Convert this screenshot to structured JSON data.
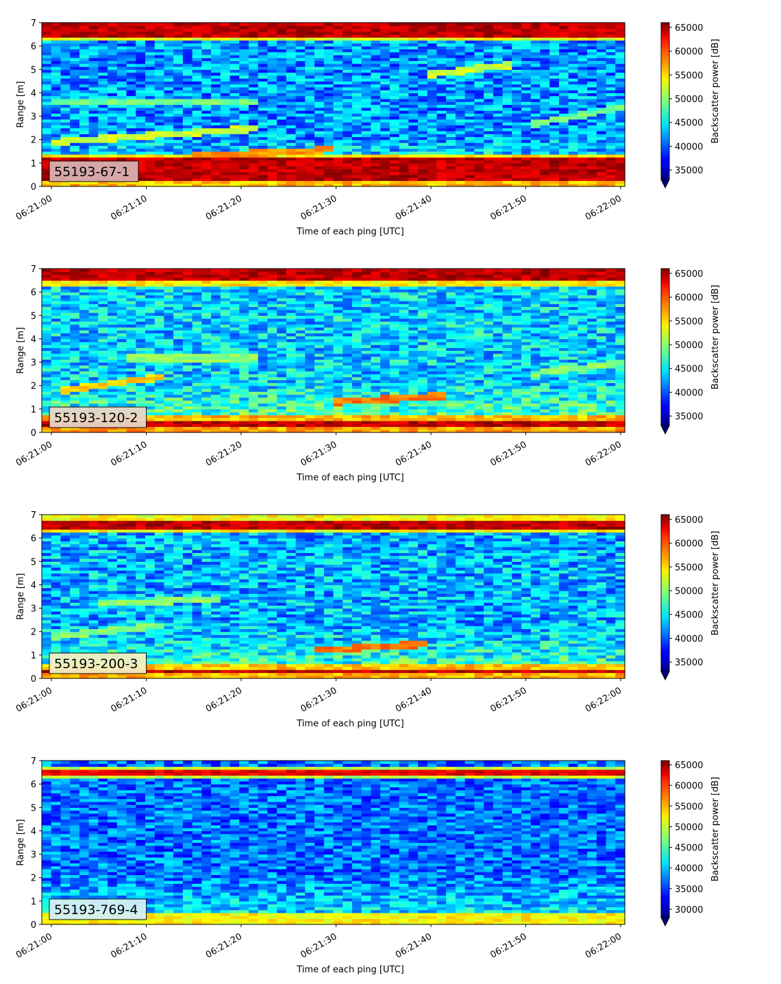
{
  "figure": {
    "panels": [
      {
        "label": "55193-67-1",
        "label_bg": "#d9b0b0",
        "cbar_ticks": [
          "35000",
          "40000",
          "45000",
          "50000",
          "55000",
          "60000",
          "65000"
        ],
        "cbar_min": 33000,
        "cbar_max": 66000
      },
      {
        "label": "55193-120-2",
        "label_bg": "#e8d6c8",
        "cbar_ticks": [
          "35000",
          "40000",
          "45000",
          "50000",
          "55000",
          "60000",
          "65000"
        ],
        "cbar_min": 33000,
        "cbar_max": 66000
      },
      {
        "label": "55193-200-3",
        "label_bg": "#f3f0c2",
        "cbar_ticks": [
          "35000",
          "40000",
          "45000",
          "50000",
          "55000",
          "60000",
          "65000"
        ],
        "cbar_min": 33000,
        "cbar_max": 66000
      },
      {
        "label": "55193-769-4",
        "label_bg": "#d4f0f4",
        "cbar_ticks": [
          "30000",
          "35000",
          "40000",
          "45000",
          "50000",
          "55000",
          "60000",
          "65000"
        ],
        "cbar_min": 28000,
        "cbar_max": 66000
      }
    ],
    "xlabel": "Time of each ping [UTC]",
    "ylabel": "Range [m]",
    "cbar_label": "Backscatter power [dB]",
    "x_ticks": [
      "06:21:00",
      "06:21:10",
      "06:21:20",
      "06:21:30",
      "06:21:40",
      "06:21:50",
      "06:22:00"
    ],
    "y_ticks": [
      "0",
      "1",
      "2",
      "3",
      "4",
      "5",
      "6",
      "7"
    ],
    "colormap": "jet"
  },
  "chart_data": [
    {
      "type": "heatmap",
      "title": "55193-67-1",
      "xlabel": "Time of each ping [UTC]",
      "ylabel": "Range [m]",
      "colorbar_label": "Backscatter power [dB]",
      "x_range": [
        "06:21:00",
        "06:22:00"
      ],
      "ylim": [
        0,
        7
      ],
      "color_range": [
        33000,
        66000
      ],
      "colormap": "jet",
      "features": [
        {
          "description": "high band",
          "range_m": [
            0.2,
            1.2
          ],
          "value": 64000
        },
        {
          "description": "high band",
          "range_m": [
            6.4,
            7.0
          ],
          "value": 64000
        },
        {
          "description": "target track",
          "time": [
            "06:21:00",
            "06:21:22"
          ],
          "range_m": [
            1.9,
            2.5
          ],
          "value": 52000
        },
        {
          "description": "target track",
          "time": [
            "06:21:00",
            "06:21:22"
          ],
          "range_m": [
            3.6,
            3.6
          ],
          "value": 49000
        },
        {
          "description": "target track",
          "time": [
            "06:21:40",
            "06:21:48"
          ],
          "range_m": [
            4.8,
            5.2
          ],
          "value": 52000
        },
        {
          "description": "target track",
          "time": [
            "06:21:50",
            "06:22:00"
          ],
          "range_m": [
            2.6,
            3.4
          ],
          "value": 49000
        },
        {
          "description": "target track",
          "time": [
            "06:21:15",
            "06:21:30"
          ],
          "range_m": [
            1.3,
            1.6
          ],
          "value": 57000
        }
      ],
      "background_value": 42000
    },
    {
      "type": "heatmap",
      "title": "55193-120-2",
      "xlabel": "Time of each ping [UTC]",
      "ylabel": "Range [m]",
      "colorbar_label": "Backscatter power [dB]",
      "x_range": [
        "06:21:00",
        "06:22:00"
      ],
      "ylim": [
        0,
        7
      ],
      "color_range": [
        33000,
        66000
      ],
      "colormap": "jet",
      "features": [
        {
          "description": "high band",
          "range_m": [
            0.2,
            0.5
          ],
          "value": 64000
        },
        {
          "description": "high band",
          "range_m": [
            6.5,
            7.0
          ],
          "value": 64000
        },
        {
          "description": "target track",
          "time": [
            "06:21:01",
            "06:21:12"
          ],
          "range_m": [
            1.8,
            2.4
          ],
          "value": 55000
        },
        {
          "description": "target track",
          "time": [
            "06:21:08",
            "06:21:22"
          ],
          "range_m": [
            3.2,
            3.2
          ],
          "value": 50000
        },
        {
          "description": "target track",
          "time": [
            "06:21:30",
            "06:21:42"
          ],
          "range_m": [
            1.3,
            1.6
          ],
          "value": 58000
        },
        {
          "description": "target track",
          "time": [
            "06:21:50",
            "06:22:00"
          ],
          "range_m": [
            2.5,
            3.0
          ],
          "value": 50000
        }
      ],
      "background_value": 44000
    },
    {
      "type": "heatmap",
      "title": "55193-200-3",
      "xlabel": "Time of each ping [UTC]",
      "ylabel": "Range [m]",
      "colorbar_label": "Backscatter power [dB]",
      "x_range": [
        "06:21:00",
        "06:22:00"
      ],
      "ylim": [
        0,
        7
      ],
      "color_range": [
        33000,
        66000
      ],
      "colormap": "jet",
      "features": [
        {
          "description": "high band",
          "range_m": [
            0.2,
            0.4
          ],
          "value": 64000
        },
        {
          "description": "high band",
          "range_m": [
            6.4,
            6.8
          ],
          "value": 64000
        },
        {
          "description": "target track",
          "time": [
            "06:21:05",
            "06:21:18"
          ],
          "range_m": [
            3.2,
            3.4
          ],
          "value": 50000
        },
        {
          "description": "target track",
          "time": [
            "06:21:28",
            "06:21:40"
          ],
          "range_m": [
            1.2,
            1.5
          ],
          "value": 58000
        },
        {
          "description": "target track",
          "time": [
            "06:21:00",
            "06:21:12"
          ],
          "range_m": [
            1.8,
            2.3
          ],
          "value": 50000
        }
      ],
      "background_value": 43000
    },
    {
      "type": "heatmap",
      "title": "55193-769-4",
      "xlabel": "Time of each ping [UTC]",
      "ylabel": "Range [m]",
      "colorbar_label": "Backscatter power [dB]",
      "x_range": [
        "06:21:00",
        "06:22:00"
      ],
      "ylim": [
        0,
        7
      ],
      "color_range": [
        28000,
        66000
      ],
      "colormap": "jet",
      "features": [
        {
          "description": "high band",
          "range_m": [
            0.2,
            0.3
          ],
          "value": 62000
        },
        {
          "description": "high band",
          "range_m": [
            6.4,
            6.6
          ],
          "value": 62000
        }
      ],
      "background_value": 37000
    }
  ]
}
